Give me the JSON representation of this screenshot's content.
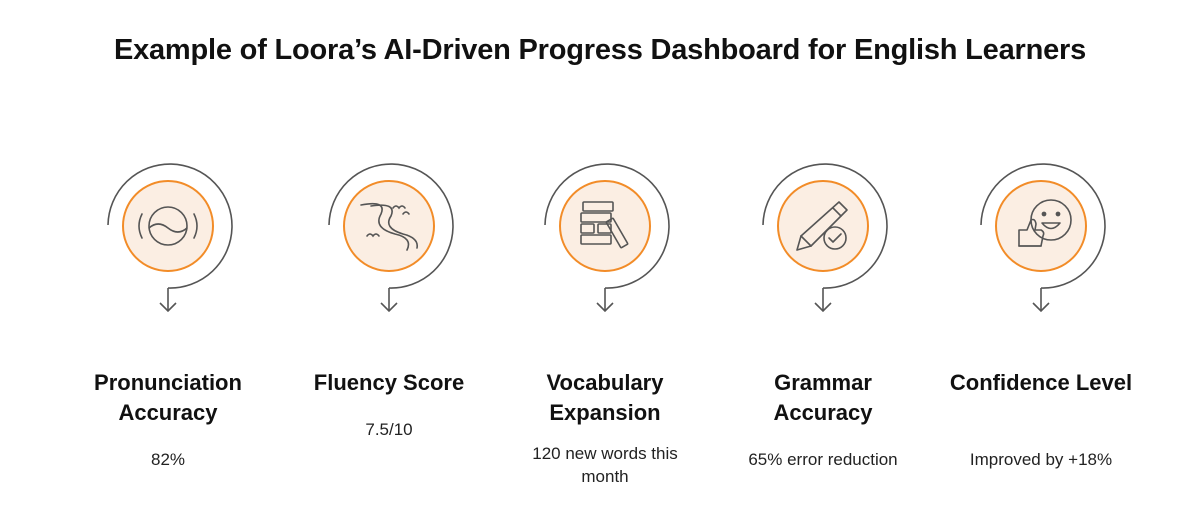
{
  "title": "Example of Loora’s AI-Driven Progress Dashboard for English Learners",
  "colors": {
    "accent": "#f28c28",
    "fill": "#fbeee3",
    "stroke": "#555555"
  },
  "metrics": [
    {
      "label": "Pronunciation Accuracy",
      "value": "82%",
      "icon": "speaking-face-icon"
    },
    {
      "label": "Fluency Score",
      "value": "7.5/10",
      "icon": "river-path-icon"
    },
    {
      "label": "Vocabulary Expansion",
      "value": "120 new words this month",
      "icon": "building-blocks-icon"
    },
    {
      "label": "Grammar Accuracy",
      "value": "65% error reduction",
      "icon": "pencil-check-icon"
    },
    {
      "label": "Confidence Level",
      "value": "Improved by +18%",
      "icon": "smiley-thumbs-up-icon"
    }
  ]
}
